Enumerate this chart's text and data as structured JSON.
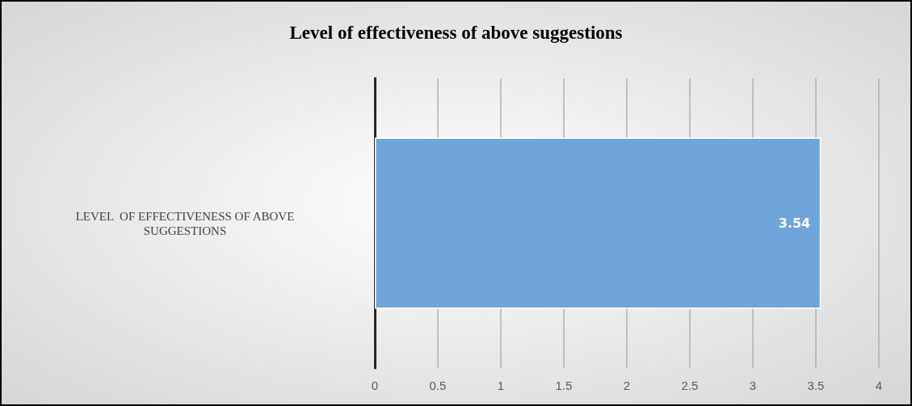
{
  "chart_data": {
    "type": "bar",
    "orientation": "horizontal",
    "title": "Level of effectiveness of above suggestions",
    "categories": [
      "LEVEL  OF EFFECTIVENESS OF ABOVE SUGGESTIONS"
    ],
    "values": [
      3.54
    ],
    "color": "#6fa5d9",
    "data_labels": true,
    "xlim": [
      0,
      4
    ],
    "xticks": [
      0,
      0.5,
      1,
      1.5,
      2,
      2.5,
      3,
      3.5,
      4
    ],
    "grid": "x"
  }
}
